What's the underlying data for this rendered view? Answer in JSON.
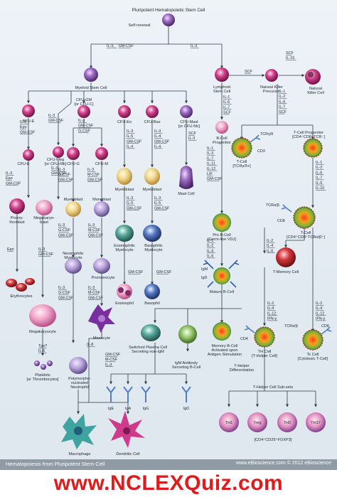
{
  "colors": {
    "line": "#2d3a47",
    "magenta": "#c42d7a",
    "pink": "#e86aa6",
    "purple": "#8a5ab0",
    "blue": "#3c5fa8",
    "teal": "#3f8f8a",
    "green": "#5aa03c",
    "red": "#c0282d",
    "orange": "#e07a1e",
    "yellow": "#e8c23a"
  },
  "nodes": {
    "stem": "Pluripotent Hematopoietic Stem Cell",
    "self_renewal": "Self-renewal",
    "myeloid": "Myeloid Stem Cell",
    "lymphoid": [
      "Lymphoid",
      "Stem Cell"
    ],
    "nk_precursor": [
      "Natural Killer",
      "Precursor"
    ],
    "nk": [
      "Natural",
      "Killer Cell"
    ],
    "bfue": "BFU-E",
    "cfugm": [
      "CFU-GM",
      "[or CFU-C]"
    ],
    "cfueo": "CFU-Eo",
    "cfubas": "CFU-Bas",
    "cfumast": [
      "CFU-Mast",
      "[or CFU-Mc]"
    ],
    "cfue": "CFU-E",
    "cfumeg": [
      "CFU-Meg",
      "[or CFU-Mk]"
    ],
    "cfug": "CFU-G",
    "cfum": "CFU-M",
    "bcell_prog": [
      "B-Cell",
      "Progenitor"
    ],
    "tcell_gd": [
      "T-Cell",
      "[TCRγ/δ+]"
    ],
    "tcell_prog": [
      "T-Cell Progenitor",
      "[CD4⁺CD8⁺TCR⁻]"
    ],
    "myeloblast_eo": "Myeloblast",
    "myeloblast_bas": "Myeloblast",
    "mast": "Mast Cell",
    "proery": [
      "Proery-",
      "throblast"
    ],
    "megakaryoblast": [
      "Megakaryo-",
      "blast"
    ],
    "myeloblast_g": "Myeloblast",
    "monoblast": "Monoblast",
    "eo_myelocyte": [
      "Eosinophilic",
      "Myelocyte"
    ],
    "bas_myelocyte": [
      "Basophilic",
      "Myelocyte"
    ],
    "pro_b": [
      "Pro B-Cell",
      "[Germ-line VDJ]"
    ],
    "tcell_ab": [
      "T-Cell",
      "[CD4⁺CD8⁺TCRα/β⁺]"
    ],
    "neut_myelocyte": [
      "Neutrophilic",
      "Myelocyte"
    ],
    "promonocyte": "Promonocyte",
    "eosinophil": "Eosinophil",
    "basophil": "Basophil",
    "mature_b": "Mature B-Cell",
    "t_memory": "T-Memory Cell",
    "erythrocytes": "Erythrocytes",
    "megakaryocyte": "Megakaryocyte",
    "monocyte": "Monocyte",
    "switched_plasma": [
      "Switched Plasma Cell",
      "Secreting non-IgM"
    ],
    "memory_b": [
      "Memory B-Cell",
      "Activated upon",
      "Antigen Stimulation"
    ],
    "th": [
      "TH Cell",
      "[T-Helper Cell]"
    ],
    "tc": [
      "Tc Cell",
      "[Cytotoxic T-Cell]"
    ],
    "igm_plasma": [
      "IgM Antibody",
      "Secreting B-Cell"
    ],
    "poly_neut": [
      "Polymorpho-",
      "nucleated",
      "Neutrophil"
    ],
    "platelets": [
      "Platelets",
      "[or Thrombocytes]"
    ],
    "th_diff": [
      "T-Helper",
      "Differentiation"
    ],
    "th_subsets": "T-Helper Cell Sub-sets",
    "macrophage": "Macrophage",
    "dendritic": "Dendritic Cell",
    "th1": "TH1",
    "treg": "Treg",
    "th2": "TH2",
    "th17": "TH17",
    "treg_note": "[CD4⁺CD25⁺FOXP3]"
  },
  "receptors": {
    "tcr_gd": "TCRγ/δ",
    "cd3": "CD3",
    "tcr_ab": "TCRα/β",
    "cd8": "CD8",
    "cd4": "CD4",
    "tcr_ab2": "TCRα/β",
    "cd8_2": "CD8",
    "igm": "IgM",
    "igd": "IgD"
  },
  "antibodies": [
    "IgE",
    "IgA",
    "IgG",
    "IgD"
  ],
  "cytokines": {
    "stem_myeloid": [
      "IL-3",
      "GM-CSF"
    ],
    "stem_lymphoid": "IL-3",
    "scf_nk": "SCF",
    "nk_to_nk": [
      "SCF",
      "IL-15"
    ],
    "nk_col": [
      "IL-1",
      "IL-2",
      "IL-6",
      "IL-7",
      "SCF"
    ],
    "lymph_col": [
      "IL-1",
      "IL-6",
      "IL-7",
      "SCF"
    ],
    "tprog_col": [
      "IL-1",
      "IL-2",
      "IL-6",
      "IL-7",
      "IL-9",
      "IL-10"
    ],
    "bfue_col": [
      "IL-3",
      "Epo",
      "GM-CSF"
    ],
    "cfumeg_col": [
      "IL-3",
      "GM-CSF"
    ],
    "cfugm_col": [
      "IL-3",
      "GM-CSF",
      "G-CSF"
    ],
    "cfueo_col": [
      "IL-3",
      "IL-5",
      "GM-CSF",
      "IL-4"
    ],
    "cfubas_col": [
      "IL-3",
      "IL-4",
      "GM-CSF",
      "IL-4"
    ],
    "cfumast_col": [
      "SCF",
      "IL-3"
    ],
    "cfue_col": [
      "IL-3",
      "Epo",
      "GM-CSF"
    ],
    "cfumeg2_col": [
      "IL-3",
      "GM-CSF"
    ],
    "cfug_col": [
      "IL-3",
      "G-CSF",
      "GM-CSF"
    ],
    "cfum_col": [
      "IL-3",
      "M-CSF",
      "GM-CSF"
    ],
    "bprog_col": [
      "IL-1",
      "IL-3",
      "IL-7",
      "IL-11",
      "IL-12",
      "LIF",
      "GM-CSF"
    ],
    "mbeo_col": [
      "IL-3",
      "IL-5",
      "GM-CSF"
    ],
    "mbbas_col": [
      "IL-3",
      "IL-5",
      "GM-CSF"
    ],
    "epo": "Epo",
    "mega_col": [
      "IL-3",
      "GM-CSF"
    ],
    "myg_col": [
      "IL-3",
      "G-CSF",
      "GM-CSF"
    ],
    "monob_col": [
      "IL-3",
      "M-CSF",
      "GM-CSF"
    ],
    "prob_col": [
      "IL-1",
      "IL-2",
      "IL-4",
      "IL-6"
    ],
    "t_ab_col": [
      "IL-2",
      "IL-4",
      "IL-6"
    ],
    "eo_gmcsf": "GM-CSF",
    "bas_gmcsf": "GM-CSF",
    "neut_col": [
      "IL-3",
      "G-CSF",
      "GM-CSF"
    ],
    "promono_col": [
      "IL-3",
      "M-CSF",
      "GM-CSF"
    ],
    "th_col": [
      "IL-2",
      "IL-4",
      "IL-12",
      "IFN-γ"
    ],
    "tc_col": [
      "IL-2",
      "IL-4",
      "IL-12",
      "IFN-γ"
    ],
    "tpo_col": [
      "Tpo?",
      "IL-6"
    ],
    "il8": "IL-8",
    "macro_col": [
      "GM-CSF",
      "M-CSF",
      "IL-3"
    ]
  },
  "footer": {
    "left": "Hematopoiesis from Pluripotent Stem Cell",
    "right": "www.eBioscience.com © 2012 eBioscience"
  },
  "banner": "www.NCLEXQuiz.com"
}
